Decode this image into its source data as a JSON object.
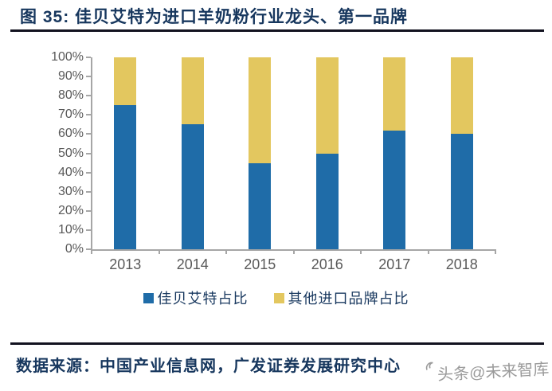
{
  "header": {
    "title": "图 35: 佳贝艾特为进口羊奶粉行业龙头、第一品牌"
  },
  "chart_data": {
    "type": "bar",
    "stacked": true,
    "title": "图 35: 佳贝艾特为进口羊奶粉行业龙头、第一品牌",
    "categories": [
      "2013",
      "2014",
      "2015",
      "2016",
      "2017",
      "2018"
    ],
    "series": [
      {
        "name": "佳贝艾特占比",
        "color": "#1F6CA8",
        "values": [
          75,
          65,
          45,
          50,
          62,
          60
        ]
      },
      {
        "name": "其他进口品牌占比",
        "color": "#E3C75F",
        "values": [
          25,
          35,
          55,
          50,
          38,
          40
        ]
      }
    ],
    "xlabel": "",
    "ylabel": "",
    "ylim": [
      0,
      100
    ],
    "ytick_step": 10,
    "ytick_labels": [
      "100%",
      "90%",
      "80%",
      "70%",
      "60%",
      "50%",
      "40%",
      "30%",
      "20%",
      "10%",
      "0%"
    ],
    "grid": false,
    "legend_position": "bottom"
  },
  "footer": {
    "source": "数据来源：中国产业信息网，广发证券发展研究中心",
    "watermark": "头条@未来智库"
  },
  "colors": {
    "accent_blue": "#1F6CA8",
    "accent_yellow": "#E3C75F",
    "title_navy": "#17375E",
    "axis_gray": "#A6A6A6",
    "axis_label_gray": "#595959",
    "rule_dark": "#12121F",
    "watermark_gray": "#9B9B9B"
  }
}
